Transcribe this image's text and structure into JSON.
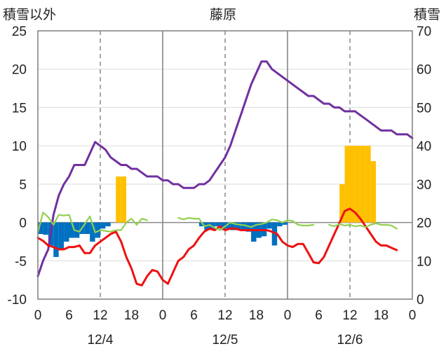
{
  "header": {
    "left_label": "積雪以外",
    "center_label": "藤原",
    "right_label": "積雪"
  },
  "chart_data": {
    "type": "line",
    "title": "藤原",
    "left_axis": {
      "label": "積雪以外",
      "ylim": [
        -10,
        25
      ],
      "ticks": [
        25,
        20,
        15,
        10,
        5,
        0,
        -5,
        -10
      ]
    },
    "right_axis": {
      "label": "積雪",
      "ylim": [
        0,
        70
      ],
      "ticks": [
        70,
        60,
        50,
        40,
        30,
        20,
        10,
        0
      ]
    },
    "x_axis": {
      "xlim": [
        0,
        72
      ],
      "tick_hours": [
        0,
        6,
        12,
        18,
        24,
        30,
        36,
        42,
        48,
        54,
        60,
        66,
        72
      ],
      "tick_labels": [
        "0",
        "6",
        "12",
        "18",
        "0",
        "6",
        "12",
        "18",
        "0",
        "6",
        "12",
        "18",
        "0"
      ],
      "day_labels": [
        {
          "hour": 12,
          "text": "12/4"
        },
        {
          "hour": 36,
          "text": "12/5"
        },
        {
          "hour": 60,
          "text": "12/6"
        }
      ],
      "solid_grid_hours": [
        24,
        48
      ],
      "dashed_grid_hours": [
        12,
        36,
        60
      ]
    },
    "colors": {
      "snow_depth": "#7030a0",
      "temperature": "#ee1111",
      "wind": "#92d050",
      "precip": "#ffc000",
      "snow_diff": "#0070c0"
    },
    "series": [
      {
        "key": "snow_depth",
        "axis": "right",
        "kind": "line",
        "points": [
          [
            0,
            6
          ],
          [
            1,
            10
          ],
          [
            2,
            13
          ],
          [
            3,
            22
          ],
          [
            4,
            27
          ],
          [
            5,
            30
          ],
          [
            6,
            32
          ],
          [
            7,
            35
          ],
          [
            8,
            35
          ],
          [
            9,
            35
          ],
          [
            10,
            38
          ],
          [
            11,
            41
          ],
          [
            12,
            40
          ],
          [
            13,
            39
          ],
          [
            14,
            37
          ],
          [
            15,
            36
          ],
          [
            16,
            35
          ],
          [
            17,
            35
          ],
          [
            18,
            34
          ],
          [
            19,
            34
          ],
          [
            20,
            33
          ],
          [
            21,
            32
          ],
          [
            22,
            32
          ],
          [
            23,
            32
          ],
          [
            24,
            31
          ],
          [
            25,
            31
          ],
          [
            26,
            30
          ],
          [
            27,
            30
          ],
          [
            28,
            29
          ],
          [
            29,
            29
          ],
          [
            30,
            29
          ],
          [
            31,
            30
          ],
          [
            32,
            30
          ],
          [
            33,
            31
          ],
          [
            34,
            33
          ],
          [
            35,
            35
          ],
          [
            36,
            37
          ],
          [
            37,
            40
          ],
          [
            38,
            44
          ],
          [
            39,
            48
          ],
          [
            40,
            52
          ],
          [
            41,
            56
          ],
          [
            42,
            59
          ],
          [
            43,
            62
          ],
          [
            44,
            62
          ],
          [
            45,
            60
          ],
          [
            46,
            59
          ],
          [
            47,
            58
          ],
          [
            48,
            57
          ],
          [
            49,
            56
          ],
          [
            50,
            55
          ],
          [
            51,
            54
          ],
          [
            52,
            53
          ],
          [
            53,
            53
          ],
          [
            54,
            52
          ],
          [
            55,
            51
          ],
          [
            56,
            51
          ],
          [
            57,
            50
          ],
          [
            58,
            50
          ],
          [
            59,
            49
          ],
          [
            60,
            49
          ],
          [
            61,
            49
          ],
          [
            62,
            48
          ],
          [
            63,
            47
          ],
          [
            64,
            46
          ],
          [
            65,
            45
          ],
          [
            66,
            44
          ],
          [
            67,
            44
          ],
          [
            68,
            44
          ],
          [
            69,
            43
          ],
          [
            70,
            43
          ],
          [
            71,
            43
          ],
          [
            72,
            42
          ]
        ]
      },
      {
        "key": "temperature",
        "axis": "left",
        "kind": "line",
        "points": [
          [
            0,
            -2
          ],
          [
            1,
            -2.4
          ],
          [
            2,
            -3
          ],
          [
            3,
            -3.2
          ],
          [
            4,
            -3.5
          ],
          [
            5,
            -3.5
          ],
          [
            6,
            -3.2
          ],
          [
            7,
            -3.2
          ],
          [
            8,
            -3
          ],
          [
            9,
            -4
          ],
          [
            10,
            -4
          ],
          [
            11,
            -3
          ],
          [
            12,
            -2.5
          ],
          [
            13,
            -2
          ],
          [
            14,
            -1.5
          ],
          [
            15,
            -1.2
          ],
          [
            16,
            -2.5
          ],
          [
            17,
            -4.5
          ],
          [
            18,
            -6
          ],
          [
            19,
            -8
          ],
          [
            20,
            -8.2
          ],
          [
            21,
            -7
          ],
          [
            22,
            -6.2
          ],
          [
            23,
            -6.4
          ],
          [
            24,
            -7.5
          ],
          [
            25,
            -8
          ],
          [
            26,
            -6.5
          ],
          [
            27,
            -5
          ],
          [
            28,
            -4.5
          ],
          [
            29,
            -3.5
          ],
          [
            30,
            -3
          ],
          [
            31,
            -2
          ],
          [
            32,
            -1.2
          ],
          [
            33,
            -0.8
          ],
          [
            34,
            -1
          ],
          [
            35,
            -0.5
          ],
          [
            36,
            -1
          ],
          [
            37,
            -0.8
          ],
          [
            38,
            -0.8
          ],
          [
            39,
            -1
          ],
          [
            40,
            -1
          ],
          [
            41,
            -1
          ],
          [
            42,
            -1
          ],
          [
            43,
            -1
          ],
          [
            44,
            -1
          ],
          [
            45,
            -1.2
          ],
          [
            46,
            -1.5
          ],
          [
            47,
            -2.5
          ],
          [
            48,
            -3
          ],
          [
            49,
            -3.2
          ],
          [
            50,
            -2.8
          ],
          [
            51,
            -2.8
          ],
          [
            52,
            -4
          ],
          [
            53,
            -5.2
          ],
          [
            54,
            -5.3
          ],
          [
            55,
            -4.5
          ],
          [
            56,
            -3
          ],
          [
            57,
            -1.5
          ],
          [
            58,
            0
          ],
          [
            59,
            1.5
          ],
          [
            60,
            1.8
          ],
          [
            61,
            1.3
          ],
          [
            62,
            0.5
          ],
          [
            63,
            -0.5
          ],
          [
            64,
            -1.5
          ],
          [
            65,
            -2.5
          ],
          [
            66,
            -3
          ],
          [
            67,
            -3
          ],
          [
            68,
            -3.3
          ],
          [
            69,
            -3.6
          ]
        ]
      },
      {
        "key": "wind",
        "axis": "left",
        "kind": "line",
        "segments": [
          [
            [
              0,
              -1.3
            ],
            [
              1,
              1.3
            ],
            [
              2,
              0.7
            ],
            [
              3,
              -0.3
            ],
            [
              4,
              1
            ],
            [
              5,
              0.9
            ],
            [
              6,
              1
            ],
            [
              7,
              -1
            ],
            [
              8,
              -1.2
            ],
            [
              9,
              -0.2
            ],
            [
              10,
              0.8
            ],
            [
              11,
              -1.3
            ],
            [
              12,
              -1
            ],
            [
              13,
              -1.1
            ],
            [
              14,
              -1.2
            ],
            [
              15,
              -1
            ],
            [
              16,
              -1
            ],
            [
              17,
              0
            ],
            [
              18,
              0.5
            ],
            [
              19,
              -0.3
            ],
            [
              20,
              0.5
            ],
            [
              21,
              0.3
            ]
          ],
          [
            [
              27,
              0.6
            ],
            [
              28,
              0.4
            ],
            [
              29,
              0.6
            ],
            [
              30,
              0.5
            ],
            [
              31,
              0.5
            ],
            [
              32,
              -0.5
            ],
            [
              33,
              -0.3
            ],
            [
              34,
              -0.7
            ],
            [
              35,
              -1
            ],
            [
              36,
              -0.5
            ],
            [
              37,
              0
            ],
            [
              38,
              -0.2
            ],
            [
              39,
              -0.3
            ],
            [
              40,
              -0.4
            ],
            [
              41,
              -0.6
            ],
            [
              42,
              -0.3
            ],
            [
              43,
              -0.2
            ],
            [
              44,
              0
            ],
            [
              45,
              0.4
            ],
            [
              46,
              0.3
            ],
            [
              47,
              0
            ],
            [
              48,
              0.3
            ],
            [
              49,
              0.2
            ],
            [
              50,
              -0.3
            ],
            [
              51,
              -0.4
            ],
            [
              52,
              -0.4
            ],
            [
              53,
              -0.3
            ]
          ],
          [
            [
              56,
              -0.3
            ],
            [
              57,
              -0.5
            ],
            [
              58,
              -0.2
            ],
            [
              59,
              -0.4
            ],
            [
              60,
              -0.3
            ],
            [
              61,
              -0.5
            ],
            [
              62,
              -0.4
            ],
            [
              63,
              -0.6
            ],
            [
              64,
              -0.3
            ],
            [
              65,
              -0.1
            ],
            [
              66,
              -0.3
            ],
            [
              67,
              -0.3
            ],
            [
              68,
              -0.4
            ],
            [
              69,
              -0.8
            ]
          ]
        ]
      },
      {
        "key": "precip",
        "axis": "left",
        "kind": "bar",
        "values": [
          [
            15,
            6
          ],
          [
            16,
            6
          ],
          [
            58,
            5
          ],
          [
            59,
            10
          ],
          [
            60,
            10
          ],
          [
            61,
            10
          ],
          [
            62,
            10
          ],
          [
            63,
            10
          ],
          [
            64,
            8
          ]
        ]
      },
      {
        "key": "snow_diff",
        "axis": "left",
        "kind": "bar",
        "values": [
          [
            0,
            -1.5
          ],
          [
            1,
            -1.6
          ],
          [
            2,
            -3
          ],
          [
            3,
            -4.5
          ],
          [
            4,
            -3.5
          ],
          [
            5,
            -2.5
          ],
          [
            6,
            -2
          ],
          [
            7,
            -2
          ],
          [
            8,
            -1.5
          ],
          [
            9,
            -1.5
          ],
          [
            10,
            -2.5
          ],
          [
            11,
            -2
          ],
          [
            12,
            -0.8
          ],
          [
            13,
            -0.5
          ],
          [
            31,
            -0.5
          ],
          [
            32,
            -1
          ],
          [
            33,
            -1
          ],
          [
            34,
            -0.5
          ],
          [
            35,
            -1
          ],
          [
            36,
            -0.8
          ],
          [
            37,
            -1
          ],
          [
            38,
            -1
          ],
          [
            39,
            -1
          ],
          [
            40,
            -1.2
          ],
          [
            41,
            -2.5
          ],
          [
            42,
            -2
          ],
          [
            43,
            -1.8
          ],
          [
            44,
            -0.8
          ],
          [
            45,
            -3
          ],
          [
            46,
            -0.5
          ],
          [
            47,
            -0.3
          ]
        ]
      }
    ]
  }
}
